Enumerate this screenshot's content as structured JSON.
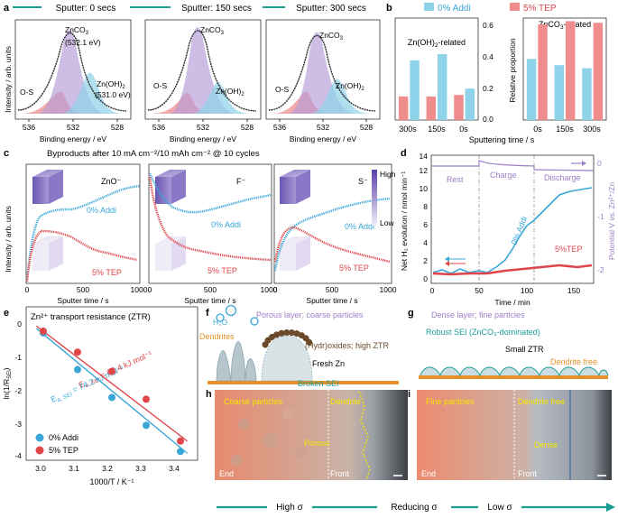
{
  "panel_letters": {
    "a": "a",
    "b": "b",
    "c": "c",
    "d": "d",
    "e": "e",
    "f": "f",
    "g": "g",
    "h": "h",
    "i": "i"
  },
  "colors": {
    "teal": "#1a9e94",
    "blue": "#3aa6d8",
    "lightblue": "#8fd3ea",
    "red": "#e0454a",
    "pink": "#ef8d8d",
    "purple": "#9b7fc4",
    "orange": "#e8912a",
    "gray": "#9aa0a6"
  },
  "panel_a": {
    "titles": [
      "Sputter: 0 secs",
      "Sputter: 150 secs",
      "Sputter: 300 secs"
    ],
    "ylabel": "Intensity / arb. units",
    "xlabel": "Binding energy / eV",
    "xticks": [
      "536",
      "532",
      "528"
    ],
    "labels_0": {
      "znco3": "ZnCO",
      "znco3_val": "(532.1 eV)",
      "os": "O-S",
      "zn": "Zn(OH)",
      "zn_val": "(531.0 eV)"
    },
    "labels_1": {
      "znco3": "ZnCO",
      "os": "O-S",
      "zn": "Zn(OH)"
    },
    "labels_2": {
      "znco3": "ZnCO",
      "os": "O-S",
      "zn": "Zn(OH)"
    },
    "sub2": "2",
    "sub3": "3"
  },
  "chart_data": [
    {
      "id": "b-left",
      "type": "bar",
      "title": "Zn(OH)2-related",
      "categories": [
        "300s",
        "150s",
        "0s"
      ],
      "series": [
        {
          "name": "0% Addi",
          "values": [
            0.38,
            0.42,
            0.2
          ]
        },
        {
          "name": "5% TEP",
          "values": [
            0.15,
            0.15,
            0.16
          ]
        }
      ],
      "ylim": [
        0,
        0.65
      ],
      "yticks": [
        "0.0",
        "0.2",
        "0.4",
        "0.6"
      ]
    },
    {
      "id": "b-right",
      "type": "bar",
      "title": "ZnCO3-related",
      "categories": [
        "0s",
        "150s",
        "300s"
      ],
      "series": [
        {
          "name": "0% Addi",
          "values": [
            0.39,
            0.35,
            0.33
          ]
        },
        {
          "name": "5% TEP",
          "values": [
            0.61,
            0.63,
            0.62
          ]
        }
      ],
      "ylim": [
        0,
        0.65
      ],
      "yticks": [
        "0.0",
        "0.2",
        "0.4",
        "0.6"
      ],
      "ylabel": "Relative proportion",
      "xlabel": "Sputtering time / s"
    },
    {
      "id": "e",
      "type": "scatter",
      "title": "Zn2+ transport resistance (ZTR)",
      "xlabel": "1000/T / K-1",
      "ylabel": "ln(1/RSEI)",
      "xlim": [
        2.95,
        3.45
      ],
      "ylim": [
        -4.2,
        0.2
      ],
      "series": [
        {
          "name": "0% Addi",
          "x": [
            3.0,
            3.1,
            3.2,
            3.3,
            3.4
          ],
          "y": [
            -0.55,
            -1.6,
            -2.4,
            -3.2,
            -3.95
          ]
        },
        {
          "name": "5% TEP",
          "x": [
            3.0,
            3.1,
            3.2,
            3.3,
            3.4
          ],
          "y": [
            -0.5,
            -1.1,
            -1.65,
            -2.45,
            -3.65
          ]
        }
      ],
      "fits": [
        {
          "name": "0% Addi",
          "x": [
            2.98,
            3.42
          ],
          "y": [
            -0.42,
            -4.0
          ]
        },
        {
          "name": "5% TEP",
          "x": [
            2.98,
            3.42
          ],
          "y": [
            -0.35,
            -3.65
          ]
        }
      ]
    }
  ],
  "panel_b": {
    "legend_addi": "0% Addi",
    "legend_tep": "5% TEP",
    "title_left": "Zn(OH)",
    "title_left_tail": "-related",
    "title_right": "ZnCO",
    "title_right_tail": "-related",
    "ylabel": "Relative proportion",
    "xlabel": "Sputtering time / s",
    "left_yticks": [
      "0.0",
      "0.2",
      "0.4",
      "0.6"
    ],
    "right_yticks": [
      "0.0",
      "0.2",
      "0.4",
      "0.6"
    ],
    "left_cats": [
      "300s",
      "150s",
      "0s"
    ],
    "right_cats": [
      "0s",
      "150s",
      "300s"
    ]
  },
  "panel_c": {
    "title": "Byproducts after 10 mA cm⁻²/10 mAh cm⁻² @ 10 cycles",
    "ylabel": "Intensity / arb. units",
    "xlabel": "Sputter time / s",
    "xticks": [
      "0",
      "500",
      "1000"
    ],
    "species": [
      "ZnO⁻",
      "F⁻",
      "S⁻"
    ],
    "addi": "0% Addi",
    "tep": "5% TEP",
    "high": "High",
    "low": "Low"
  },
  "panel_d": {
    "ylabel": "Net H₂ evolution / nmol min⁻¹",
    "y2label": "Potential V vs. Zn²⁺/Zn",
    "xlabel": "Time / min",
    "yticks": [
      "0",
      "2",
      "4",
      "6",
      "8",
      "10",
      "12",
      "14"
    ],
    "y2ticks": [
      "0",
      "-1",
      "-2"
    ],
    "xticks": [
      "0",
      "50",
      "100",
      "150"
    ],
    "rest": "Rest",
    "charge": "Charge",
    "discharge": "Discharge",
    "addi": "0% Addi",
    "tep": "5%TEP"
  },
  "panel_e": {
    "title": "Zn²⁺ transport resistance (ZTR)",
    "ylabel": "ln(1/R",
    "ylabel_sub": "SEI",
    "xlabel": "1000/T / K⁻¹",
    "xticks": [
      "3.0",
      "3.1",
      "3.2",
      "3.3",
      "3.4"
    ],
    "yticks": [
      "0",
      "-1",
      "-2",
      "-3",
      "-4"
    ],
    "ea_red": "E",
    "ea_red_text": " = 62.4 kJ mol⁻¹",
    "ea_blue": "E",
    "ea_blue_text": " = 74.2 kJ mol⁻¹",
    "ea_sub": "a, SEI",
    "legend_addi": "0% Addi",
    "legend_tep": "5% TEP"
  },
  "panel_f": {
    "h2o": "H₂O",
    "porous": "Porous layer; coarse particles",
    "dendrites": "Dendrites",
    "oxides": "(Hydr)oxides; high ZTR",
    "fresh": "Fresh Zn",
    "broken": "Broken SEI"
  },
  "panel_g": {
    "dense": "Dense layer; fine particles",
    "robust": "Robust SEI (ZnCO₃-dominated)",
    "small": "Small ZTR",
    "free": "Dendrite free"
  },
  "panel_h": {
    "coarse": "Coarse particles",
    "dendrite": "Dendrite",
    "porous": "Porous",
    "end": "End",
    "front": "Front"
  },
  "panel_i": {
    "fine": "Fine particles",
    "free": "Dendrite free",
    "dense": "Dense",
    "end": "End",
    "front": "Front"
  },
  "bottom": {
    "high": "High σ",
    "reducing": "Reducing σ",
    "low": "Low σ"
  }
}
